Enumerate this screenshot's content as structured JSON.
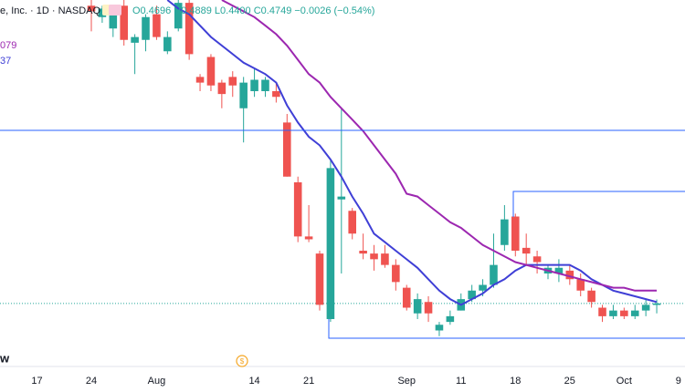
{
  "header": {
    "symbol": "e, Inc. · 1D · NASDAQ",
    "ohlc": "O0.4696 H0.4889 L0.4400 C0.4749 −0.0026 (−0.54%)",
    "ma_labels": [
      "079",
      "37"
    ],
    "logo": "w"
  },
  "chart_data": {
    "type": "candlestick",
    "up_color": "#26a69a",
    "down_color": "#ef5350",
    "xlim": [
      -8.4,
      54.6
    ],
    "ylim": [
      0.26,
      1.54
    ],
    "xticks": [
      {
        "value": -5,
        "label": "17"
      },
      {
        "value": 0,
        "label": "24"
      },
      {
        "value": 6,
        "label": "Aug"
      },
      {
        "value": 15,
        "label": "14"
      },
      {
        "value": 20,
        "label": "21"
      },
      {
        "value": 29,
        "label": "Sep"
      },
      {
        "value": 34,
        "label": "11"
      },
      {
        "value": 39,
        "label": "18"
      },
      {
        "value": 44,
        "label": "25"
      },
      {
        "value": 49,
        "label": "Oct"
      },
      {
        "value": 54,
        "label": "9"
      }
    ],
    "open": [
      1.52,
      1.48,
      1.44,
      1.52,
      1.39,
      1.4,
      1.49,
      1.36,
      1.44,
      1.53,
      1.27,
      1.34,
      1.25,
      1.27,
      1.16,
      1.22,
      1.22,
      1.22,
      1.11,
      0.9,
      0.71,
      0.65,
      0.42,
      0.84,
      0.8,
      0.66,
      0.65,
      0.65,
      0.61,
      0.53,
      0.44,
      0.48,
      0.38,
      0.41,
      0.45,
      0.49,
      0.52,
      0.54,
      0.68,
      0.78,
      0.67,
      0.64,
      0.58,
      0.58,
      0.59,
      0.56,
      0.52,
      0.46,
      0.43,
      0.45,
      0.43,
      0.45,
      0.4696
    ],
    "high": [
      1.54,
      1.52,
      1.51,
      1.54,
      1.42,
      1.49,
      1.52,
      1.43,
      1.54,
      1.54,
      1.28,
      1.35,
      1.26,
      1.29,
      1.27,
      1.3,
      1.27,
      1.25,
      1.14,
      0.92,
      0.82,
      0.66,
      0.98,
      1.16,
      0.81,
      0.72,
      0.68,
      0.68,
      0.63,
      0.54,
      0.51,
      0.5,
      0.41,
      0.45,
      0.51,
      0.54,
      0.56,
      0.72,
      0.82,
      0.79,
      0.72,
      0.66,
      0.61,
      0.63,
      0.61,
      0.58,
      0.53,
      0.47,
      0.47,
      0.46,
      0.47,
      0.49,
      0.4889
    ],
    "low": [
      1.43,
      1.46,
      1.41,
      1.38,
      1.28,
      1.36,
      1.4,
      1.35,
      1.43,
      1.33,
      1.22,
      1.22,
      1.16,
      1.2,
      1.04,
      1.2,
      1.2,
      1.18,
      0.92,
      0.69,
      0.69,
      0.45,
      0.41,
      0.58,
      0.7,
      0.63,
      0.59,
      0.6,
      0.52,
      0.45,
      0.42,
      0.41,
      0.36,
      0.4,
      0.45,
      0.48,
      0.5,
      0.53,
      0.66,
      0.64,
      0.61,
      0.58,
      0.56,
      0.55,
      0.54,
      0.5,
      0.46,
      0.41,
      0.42,
      0.42,
      0.42,
      0.43,
      0.44
    ],
    "close": [
      1.5,
      1.51,
      1.49,
      1.4,
      1.41,
      1.48,
      1.41,
      1.41,
      1.53,
      1.35,
      1.25,
      1.24,
      1.21,
      1.24,
      1.25,
      1.26,
      1.26,
      1.2,
      0.92,
      0.71,
      0.7,
      0.47,
      0.95,
      0.85,
      0.72,
      0.65,
      0.63,
      0.61,
      0.55,
      0.46,
      0.49,
      0.44,
      0.4,
      0.43,
      0.49,
      0.52,
      0.54,
      0.61,
      0.77,
      0.66,
      0.65,
      0.62,
      0.6,
      0.6,
      0.56,
      0.52,
      0.48,
      0.43,
      0.45,
      0.43,
      0.45,
      0.47,
      0.4749
    ],
    "series": [
      {
        "color": "#3f3fd6",
        "values": [
          null,
          null,
          null,
          null,
          null,
          null,
          null,
          1.54,
          1.51,
          1.49,
          1.45,
          1.41,
          1.38,
          1.35,
          1.32,
          1.3,
          1.28,
          1.25,
          1.17,
          1.11,
          1.06,
          1.03,
          0.98,
          0.92,
          0.85,
          0.79,
          0.72,
          0.69,
          0.66,
          0.63,
          0.6,
          0.56,
          0.52,
          0.49,
          0.47,
          0.49,
          0.51,
          0.54,
          0.56,
          0.59,
          0.61,
          0.61,
          0.61,
          0.61,
          0.61,
          0.59,
          0.56,
          0.54,
          0.52,
          0.51,
          0.5,
          0.49,
          0.48
        ]
      },
      {
        "color": "#9c27b0",
        "values": [
          null,
          null,
          null,
          null,
          null,
          null,
          null,
          null,
          null,
          null,
          null,
          null,
          1.54,
          1.52,
          1.5,
          1.48,
          1.45,
          1.42,
          1.38,
          1.33,
          1.28,
          1.25,
          1.2,
          1.16,
          1.12,
          1.08,
          1.03,
          0.98,
          0.93,
          0.86,
          0.85,
          0.82,
          0.79,
          0.76,
          0.74,
          0.71,
          0.68,
          0.66,
          0.64,
          0.62,
          0.61,
          0.6,
          0.59,
          0.58,
          0.57,
          0.56,
          0.55,
          0.54,
          0.53,
          0.53,
          0.52,
          0.52,
          0.52
        ]
      }
    ]
  }
}
